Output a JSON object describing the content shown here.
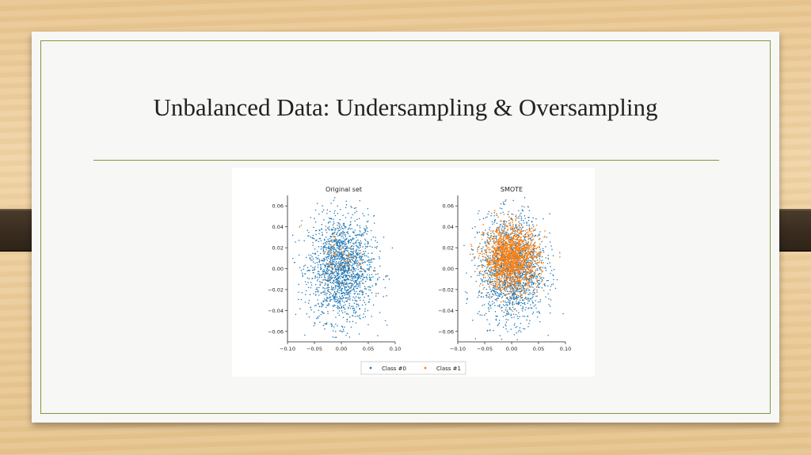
{
  "slide": {
    "title": "Unbalanced Data: Undersampling & Oversampling"
  },
  "colors": {
    "class0": "#1f77b4",
    "class1": "#ff7f0e",
    "frame": "#7f9a3c"
  },
  "chart_data": [
    {
      "type": "scatter",
      "title": "Original set",
      "xlim": [
        -0.1,
        0.1
      ],
      "ylim": [
        -0.07,
        0.07
      ],
      "xticks": [
        -0.1,
        -0.05,
        0.0,
        0.05,
        0.1
      ],
      "xtick_labels": [
        "−0.10",
        "−0.05",
        "0.00",
        "0.05",
        "0.10"
      ],
      "yticks": [
        0.06,
        0.04,
        0.02,
        0.0,
        -0.02,
        -0.04,
        -0.06
      ],
      "ytick_labels": [
        "0.06",
        "0.04",
        "0.02",
        "0.00",
        "−0.02",
        "−0.04",
        "−0.06"
      ],
      "series": [
        {
          "name": "Class #0",
          "color": "#1f77b4",
          "center": [
            0.0,
            0.0
          ],
          "std": [
            0.03,
            0.025
          ],
          "count": 1800
        },
        {
          "name": "Class #1",
          "color": "#ff7f0e",
          "center": [
            0.0,
            0.01
          ],
          "std": [
            0.022,
            0.015
          ],
          "count": 60
        }
      ]
    },
    {
      "type": "scatter",
      "title": "SMOTE",
      "xlim": [
        -0.1,
        0.1
      ],
      "ylim": [
        -0.07,
        0.07
      ],
      "xticks": [
        -0.1,
        -0.05,
        0.0,
        0.05,
        0.1
      ],
      "xtick_labels": [
        "−0.10",
        "−0.05",
        "0.00",
        "0.05",
        "0.10"
      ],
      "yticks": [
        0.06,
        0.04,
        0.02,
        0.0,
        -0.02,
        -0.04,
        -0.06
      ],
      "ytick_labels": [
        "0.06",
        "0.04",
        "0.02",
        "0.00",
        "−0.02",
        "−0.04",
        "−0.06"
      ],
      "series": [
        {
          "name": "Class #0",
          "color": "#1f77b4",
          "center": [
            0.0,
            0.0
          ],
          "std": [
            0.03,
            0.025
          ],
          "count": 1800
        },
        {
          "name": "Class #1",
          "color": "#ff7f0e",
          "center": [
            0.0,
            0.01
          ],
          "std": [
            0.025,
            0.015
          ],
          "count": 1500
        }
      ]
    }
  ],
  "legend": {
    "placement": "bottom-center",
    "entries": [
      "Class #0",
      "Class #1"
    ]
  }
}
